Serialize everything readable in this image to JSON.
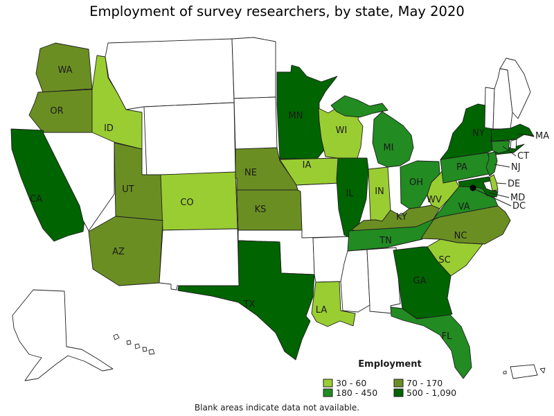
{
  "title": "Employment of survey researchers, by state, May 2020",
  "footnote": "Blank areas indicate data not available.",
  "legend": {
    "title": "Employment",
    "items": [
      {
        "id": "q1",
        "range": "30 - 60",
        "color": "#9ACD32"
      },
      {
        "id": "q2",
        "range": "70 - 170",
        "color": "#6B8E23"
      },
      {
        "id": "q3",
        "range": "180 - 450",
        "color": "#228B22"
      },
      {
        "id": "q4",
        "range": "500 - 1,090",
        "color": "#006400"
      }
    ]
  },
  "map": {
    "blank_color": "#FFFFFF",
    "border_color": "#1f1f1f",
    "label_color": "#1a1a1a",
    "dc_marker_color": "#000000",
    "states": [
      {
        "abbr": "WA",
        "category": "q2",
        "label": "WA"
      },
      {
        "abbr": "OR",
        "category": "q2",
        "label": "OR"
      },
      {
        "abbr": "CA",
        "category": "q4",
        "label": "CA"
      },
      {
        "abbr": "ID",
        "category": "q1",
        "label": "ID"
      },
      {
        "abbr": "NV",
        "category": "no_data",
        "label": null
      },
      {
        "abbr": "MT",
        "category": "no_data",
        "label": null
      },
      {
        "abbr": "WY",
        "category": "no_data",
        "label": null
      },
      {
        "abbr": "UT",
        "category": "q2",
        "label": "UT"
      },
      {
        "abbr": "CO",
        "category": "q1",
        "label": "CO"
      },
      {
        "abbr": "AZ",
        "category": "q2",
        "label": "AZ"
      },
      {
        "abbr": "NM",
        "category": "no_data",
        "label": null
      },
      {
        "abbr": "ND",
        "category": "no_data",
        "label": null
      },
      {
        "abbr": "SD",
        "category": "no_data",
        "label": null
      },
      {
        "abbr": "NE",
        "category": "q2",
        "label": "NE"
      },
      {
        "abbr": "KS",
        "category": "q2",
        "label": "KS"
      },
      {
        "abbr": "OK",
        "category": "no_data",
        "label": null
      },
      {
        "abbr": "TX",
        "category": "q4",
        "label": "TX"
      },
      {
        "abbr": "MN",
        "category": "q4",
        "label": "MN"
      },
      {
        "abbr": "IA",
        "category": "q1",
        "label": "IA"
      },
      {
        "abbr": "MO",
        "category": "no_data",
        "label": null
      },
      {
        "abbr": "AR",
        "category": "no_data",
        "label": null
      },
      {
        "abbr": "LA",
        "category": "q1",
        "label": "LA"
      },
      {
        "abbr": "MS",
        "category": "no_data",
        "label": null
      },
      {
        "abbr": "AL",
        "category": "no_data",
        "label": null
      },
      {
        "abbr": "WI",
        "category": "q1",
        "label": "WI"
      },
      {
        "abbr": "IL",
        "category": "q4",
        "label": "IL"
      },
      {
        "abbr": "IN",
        "category": "q1",
        "label": "IN"
      },
      {
        "abbr": "MI",
        "category": "q3",
        "label": "MI"
      },
      {
        "abbr": "OH",
        "category": "q3",
        "label": "OH"
      },
      {
        "abbr": "WV",
        "category": "q1",
        "label": "WV"
      },
      {
        "abbr": "KY",
        "category": "q2",
        "label": "KY"
      },
      {
        "abbr": "TN",
        "category": "q3",
        "label": "TN"
      },
      {
        "abbr": "VA",
        "category": "q3",
        "label": "VA"
      },
      {
        "abbr": "NC",
        "category": "q2",
        "label": "NC"
      },
      {
        "abbr": "SC",
        "category": "q1",
        "label": "SC"
      },
      {
        "abbr": "GA",
        "category": "q4",
        "label": "GA"
      },
      {
        "abbr": "FL",
        "category": "q3",
        "label": "FL"
      },
      {
        "abbr": "PA",
        "category": "q3",
        "label": "PA"
      },
      {
        "abbr": "NY",
        "category": "q4",
        "label": "NY"
      },
      {
        "abbr": "VT",
        "category": "no_data",
        "label": null
      },
      {
        "abbr": "NH",
        "category": "no_data",
        "label": null
      },
      {
        "abbr": "ME",
        "category": "no_data",
        "label": null
      },
      {
        "abbr": "MA",
        "category": "q4",
        "label": "MA"
      },
      {
        "abbr": "RI",
        "category": "no_data",
        "label": null
      },
      {
        "abbr": "CT",
        "category": "q3",
        "label": "CT"
      },
      {
        "abbr": "NJ",
        "category": "q3",
        "label": "NJ"
      },
      {
        "abbr": "DE",
        "category": "q1",
        "label": "DE"
      },
      {
        "abbr": "MD",
        "category": "q4",
        "label": "MD"
      },
      {
        "abbr": "DC",
        "category": "q4",
        "label": "DC"
      },
      {
        "abbr": "AK",
        "category": "no_data",
        "label": null
      },
      {
        "abbr": "HI",
        "category": "no_data",
        "label": null
      },
      {
        "abbr": "PR",
        "category": "no_data",
        "label": null
      }
    ]
  },
  "chart_data": {
    "type": "choropleth",
    "title": "Employment of survey researchers, by state, May 2020",
    "legend_title": "Employment",
    "bins": [
      {
        "label": "30 - 60",
        "color": "#9ACD32",
        "states": [
          "ID",
          "CO",
          "WI",
          "IA",
          "IN",
          "WV",
          "SC",
          "LA",
          "DE"
        ]
      },
      {
        "label": "70 - 170",
        "color": "#6B8E23",
        "states": [
          "WA",
          "OR",
          "UT",
          "AZ",
          "NE",
          "KS",
          "KY",
          "NC"
        ]
      },
      {
        "label": "180 - 450",
        "color": "#228B22",
        "states": [
          "MI",
          "OH",
          "PA",
          "NJ",
          "CT",
          "VA",
          "TN",
          "FL"
        ]
      },
      {
        "label": "500 - 1,090",
        "color": "#006400",
        "states": [
          "CA",
          "MN",
          "IL",
          "TX",
          "GA",
          "NY",
          "MA",
          "MD",
          "DC"
        ]
      }
    ],
    "no_data_states": [
      "NV",
      "MT",
      "WY",
      "NM",
      "ND",
      "SD",
      "OK",
      "MO",
      "AR",
      "MS",
      "AL",
      "VT",
      "NH",
      "ME",
      "RI",
      "AK",
      "HI",
      "PR"
    ],
    "note": "Blank areas indicate data not available."
  }
}
